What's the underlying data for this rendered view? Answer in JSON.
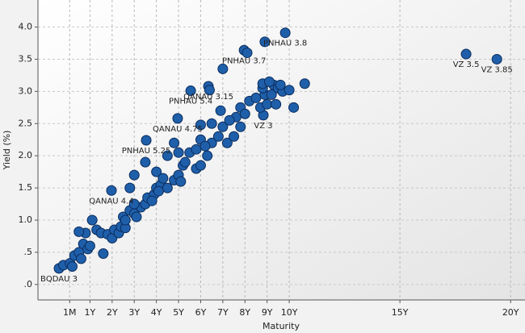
{
  "chart_data": {
    "type": "scatter",
    "x_label": "Maturity",
    "y_label": "Yield (%)",
    "xlim": [
      -1.35,
      20.65
    ],
    "ylim": [
      -0.24,
      4.42
    ],
    "grid": true,
    "xticks": [
      {
        "value": 0.0833,
        "label": "1M"
      },
      {
        "value": 1,
        "label": "1Y"
      },
      {
        "value": 2,
        "label": "2Y"
      },
      {
        "value": 3,
        "label": "3Y"
      },
      {
        "value": 4,
        "label": "4Y"
      },
      {
        "value": 5,
        "label": "5Y"
      },
      {
        "value": 6,
        "label": "6Y"
      },
      {
        "value": 7,
        "label": "7Y"
      },
      {
        "value": 8,
        "label": "8Y"
      },
      {
        "value": 9,
        "label": "9Y"
      },
      {
        "value": 10,
        "label": "10Y"
      },
      {
        "value": 15,
        "label": "15Y"
      },
      {
        "value": 20,
        "label": "20Y"
      }
    ],
    "yticks": [
      {
        "value": 0,
        "label": ".0"
      },
      {
        "value": 0.5,
        "label": ".5"
      },
      {
        "value": 1,
        "label": "1.0"
      },
      {
        "value": 1.5,
        "label": "1.5"
      },
      {
        "value": 2,
        "label": "2.0"
      },
      {
        "value": 2.5,
        "label": "2.5"
      },
      {
        "value": 3,
        "label": "3.0"
      },
      {
        "value": 3.5,
        "label": "3.5"
      },
      {
        "value": 4,
        "label": "4.0"
      }
    ],
    "series": [
      {
        "color": "#1f5faa",
        "x": [
          9.82,
          7.96,
          17.99,
          19.38,
          6.35,
          5.55,
          8.83,
          4.96,
          3.54,
          1.97,
          -0.4,
          -0.2,
          0.1,
          0.2,
          0.3,
          0.5,
          0.6,
          0.7,
          0.9,
          1.0,
          1.1,
          0.8,
          0.5,
          1.3,
          1.5,
          1.6,
          1.8,
          2.0,
          2.1,
          2.3,
          2.4,
          2.5,
          2.6,
          2.8,
          3.0,
          3.1,
          3.3,
          3.5,
          3.6,
          3.9,
          4.0,
          4.2,
          4.5,
          4.8,
          5.0,
          5.2,
          2.8,
          3.0,
          3.5,
          4.0,
          4.3,
          4.5,
          4.8,
          5.0,
          5.3,
          5.5,
          5.8,
          6.0,
          6.3,
          6.5,
          5.8,
          6.0,
          6.2,
          6.8,
          7.0,
          7.2,
          7.5,
          7.6,
          6.5,
          6.9,
          7.3,
          6.0,
          7.8,
          8.0,
          8.2,
          8.5,
          8.7,
          8.9,
          9.0,
          9.2,
          9.3,
          9.5,
          9.7,
          8.8,
          8.8,
          9.1,
          9.6,
          10.0,
          10.2,
          10.7,
          7.8,
          9.4,
          6.4,
          7.0,
          8.1,
          8.9,
          3.0,
          2.6,
          3.8,
          4.1,
          5.1
        ],
        "values": [
          3.91,
          3.64,
          3.58,
          3.5,
          3.08,
          3.01,
          2.63,
          2.58,
          2.24,
          1.46,
          0.25,
          0.3,
          0.33,
          0.28,
          0.45,
          0.5,
          0.4,
          0.63,
          0.55,
          0.6,
          1.0,
          0.8,
          0.82,
          0.85,
          0.8,
          0.48,
          0.78,
          0.72,
          0.85,
          0.8,
          0.9,
          1.05,
          0.88,
          1.15,
          1.1,
          1.05,
          1.2,
          1.25,
          1.35,
          1.4,
          1.5,
          1.55,
          1.5,
          1.62,
          1.7,
          1.85,
          1.5,
          1.7,
          1.9,
          1.75,
          1.65,
          2.0,
          2.2,
          2.05,
          1.9,
          2.05,
          1.8,
          1.85,
          2.0,
          2.2,
          2.1,
          2.25,
          2.15,
          2.3,
          2.45,
          2.2,
          2.3,
          2.6,
          2.5,
          2.7,
          2.55,
          2.48,
          2.75,
          2.65,
          2.85,
          2.9,
          2.75,
          2.95,
          2.8,
          2.95,
          3.1,
          3.05,
          3.0,
          3.05,
          3.12,
          3.15,
          3.1,
          3.02,
          2.75,
          3.12,
          2.45,
          2.8,
          3.02,
          3.35,
          3.6,
          3.77,
          1.25,
          1.0,
          1.3,
          1.45,
          1.6
        ],
        "labels": [
          "PNHAU 3.8",
          "PNHAU 3.7",
          "VZ 3.5",
          "VZ 3.85",
          "QANAU 3.15",
          "PNHAU 5.4",
          "VZ 3",
          "QANAU 4.75",
          "PNHAU 5.25",
          "QANAU 4.4",
          "BQDAU 3",
          null,
          null,
          null,
          null,
          null,
          null,
          null,
          null,
          null,
          null,
          null,
          null,
          null,
          null,
          null,
          null,
          null,
          null,
          null,
          null,
          null,
          null,
          null,
          null,
          null,
          null,
          null,
          null,
          null,
          null,
          null,
          null,
          null,
          null,
          null,
          null,
          null,
          null,
          null,
          null,
          null,
          null,
          null,
          null,
          null,
          null,
          null,
          null,
          null,
          null,
          null,
          null,
          null,
          null,
          null,
          null,
          null,
          null,
          null,
          null,
          null,
          null,
          null,
          null,
          null,
          null,
          null,
          null,
          null,
          null,
          null,
          null,
          null,
          null,
          null,
          null,
          null,
          null,
          null,
          null,
          null,
          null,
          null,
          null,
          null,
          null,
          null,
          null,
          null,
          null
        ]
      }
    ]
  }
}
